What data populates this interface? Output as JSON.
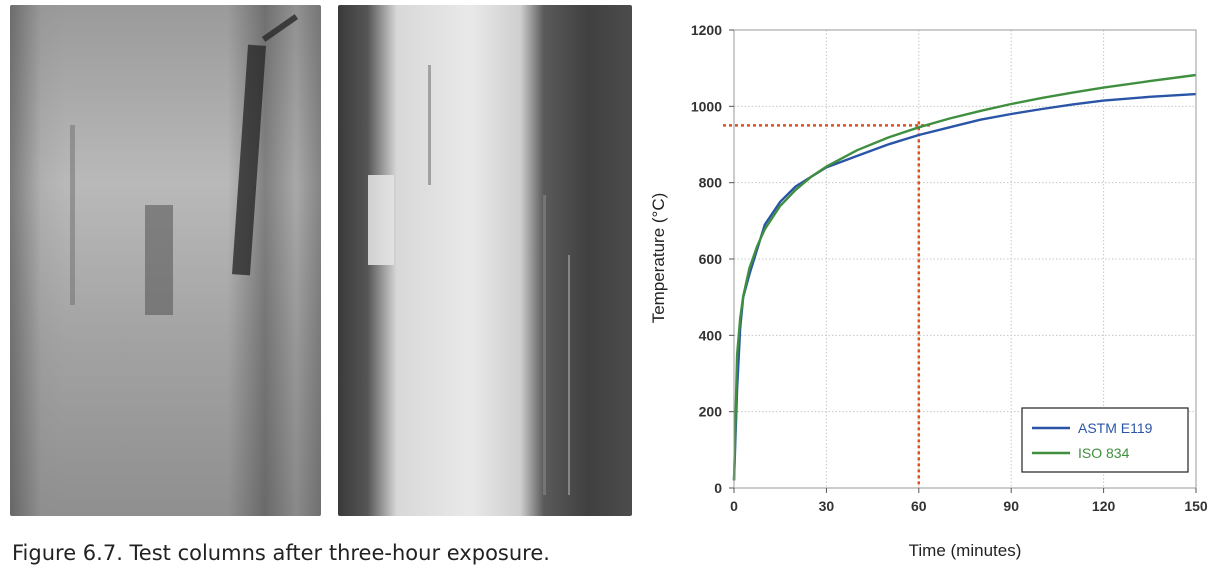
{
  "figure": {
    "caption": "Figure 6.7. Test columns after three-hour exposure."
  },
  "photos": [
    {
      "name": "test-column-left"
    },
    {
      "name": "test-column-right"
    }
  ],
  "chart_data": {
    "type": "line",
    "title": "",
    "xlabel": "Time (minutes)",
    "ylabel": "Temperature (°C)",
    "xlim": [
      0,
      150
    ],
    "ylim": [
      0,
      1200
    ],
    "xticks": [
      0,
      30,
      60,
      90,
      120,
      150
    ],
    "yticks": [
      0,
      200,
      400,
      600,
      800,
      1000,
      1200
    ],
    "grid": true,
    "legend_position": "bottom-right",
    "series": [
      {
        "name": "ASTM E119",
        "color": "#2a55a6",
        "x": [
          0,
          1,
          2,
          3,
          5,
          7.5,
          10,
          15,
          20,
          25,
          30,
          40,
          50,
          60,
          70,
          80,
          90,
          100,
          110,
          120,
          135,
          150
        ],
        "y": [
          20,
          260,
          420,
          500,
          560,
          625,
          690,
          750,
          790,
          815,
          840,
          870,
          900,
          925,
          945,
          965,
          980,
          993,
          1005,
          1015,
          1025,
          1032
        ]
      },
      {
        "name": "ISO 834",
        "color": "#3f8f3f",
        "x": [
          0,
          1,
          2,
          3,
          5,
          7.5,
          10,
          15,
          20,
          25,
          30,
          40,
          50,
          60,
          70,
          80,
          90,
          100,
          110,
          120,
          135,
          150
        ],
        "y": [
          20,
          349,
          445,
          502,
          576,
          633,
          678,
          739,
          781,
          815,
          842,
          885,
          918,
          945,
          968,
          988,
          1006,
          1022,
          1036,
          1049,
          1066,
          1082
        ]
      }
    ],
    "annotations": [
      {
        "type": "hline",
        "y": 950,
        "x_to": 60,
        "color": "#e0501e",
        "style": "dotted"
      },
      {
        "type": "vline",
        "x": 60,
        "y_to": 950,
        "color": "#e0501e",
        "style": "dotted"
      }
    ]
  }
}
